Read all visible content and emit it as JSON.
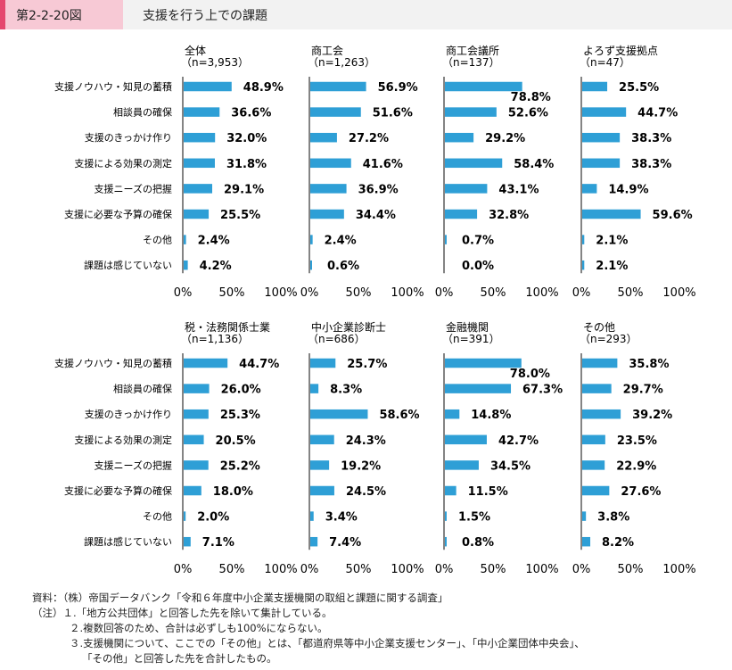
{
  "header": {
    "figure_number": "第2-2-20図",
    "title": "支援を行う上での課題"
  },
  "chart_data": {
    "type": "bar",
    "orientation": "horizontal",
    "categories": [
      "支援ノウハウ・知見の蓄積",
      "相談員の確保",
      "支援のきっかけ作り",
      "支援による効果の測定",
      "支援ニーズの把握",
      "支援に必要な予算の確保",
      "その他",
      "課題は感じていない"
    ],
    "xlim": [
      0,
      100
    ],
    "ticks": [
      "0%",
      "50%",
      "100%"
    ],
    "bar_color": "#2e9fd6",
    "panels": [
      {
        "title": "全体",
        "n": "（n=3,953）",
        "values": [
          48.9,
          36.6,
          32.0,
          31.8,
          29.1,
          25.5,
          2.4,
          4.2
        ],
        "labels": [
          "48.9%",
          "36.6%",
          "32.0%",
          "31.8%",
          "29.1%",
          "25.5%",
          "2.4%",
          "4.2%"
        ]
      },
      {
        "title": "商工会",
        "n": "（n=1,263）",
        "values": [
          56.9,
          51.6,
          27.2,
          41.6,
          36.9,
          34.4,
          2.4,
          0.6
        ],
        "labels": [
          "56.9%",
          "51.6%",
          "27.2%",
          "41.6%",
          "36.9%",
          "34.4%",
          "2.4%",
          "0.6%"
        ]
      },
      {
        "title": "商工会議所",
        "n": "（n=137）",
        "values": [
          78.8,
          52.6,
          29.2,
          58.4,
          43.1,
          32.8,
          0.7,
          0.0
        ],
        "labels": [
          "78.8%",
          "52.6%",
          "29.2%",
          "58.4%",
          "43.1%",
          "32.8%",
          "0.7%",
          "0.0%"
        ]
      },
      {
        "title": "よろず支援拠点",
        "n": "（n=47）",
        "values": [
          25.5,
          44.7,
          38.3,
          38.3,
          14.9,
          59.6,
          2.1,
          2.1
        ],
        "labels": [
          "25.5%",
          "44.7%",
          "38.3%",
          "38.3%",
          "14.9%",
          "59.6%",
          "2.1%",
          "2.1%"
        ]
      },
      {
        "title": "税・法務関係士業",
        "n": "（n=1,136）",
        "values": [
          44.7,
          26.0,
          25.3,
          20.5,
          25.2,
          18.0,
          2.0,
          7.1
        ],
        "labels": [
          "44.7%",
          "26.0%",
          "25.3%",
          "20.5%",
          "25.2%",
          "18.0%",
          "2.0%",
          "7.1%"
        ]
      },
      {
        "title": "中小企業診断士",
        "n": "（n=686）",
        "values": [
          25.7,
          8.3,
          58.6,
          24.3,
          19.2,
          24.5,
          3.4,
          7.4
        ],
        "labels": [
          "25.7%",
          "8.3%",
          "58.6%",
          "24.3%",
          "19.2%",
          "24.5%",
          "3.4%",
          "7.4%"
        ]
      },
      {
        "title": "金融機関",
        "n": "（n=391）",
        "values": [
          78.0,
          67.3,
          14.8,
          42.7,
          34.5,
          11.5,
          1.5,
          0.8
        ],
        "labels": [
          "78.0%",
          "67.3%",
          "14.8%",
          "42.7%",
          "34.5%",
          "11.5%",
          "1.5%",
          "0.8%"
        ]
      },
      {
        "title": "その他",
        "n": "（n=293）",
        "values": [
          35.8,
          29.7,
          39.2,
          23.5,
          22.9,
          27.6,
          3.8,
          8.2
        ],
        "labels": [
          "35.8%",
          "29.7%",
          "39.2%",
          "23.5%",
          "22.9%",
          "27.6%",
          "3.8%",
          "8.2%"
        ]
      }
    ]
  },
  "notes": [
    "資料：（株）帝国データバンク「令和６年度中小企業支援機関の取組と課題に関する調査」",
    "（注）１.「地方公共団体」と回答した先を除いて集計している。",
    "２.複数回答のため、合計は必ずしも100%にならない。",
    "３.支援機関について、ここでの「その他」とは、「都道府県等中小企業支援センター」、「中小企業団体中央会」、",
    "「その他」と回答した先を合計したもの。"
  ]
}
